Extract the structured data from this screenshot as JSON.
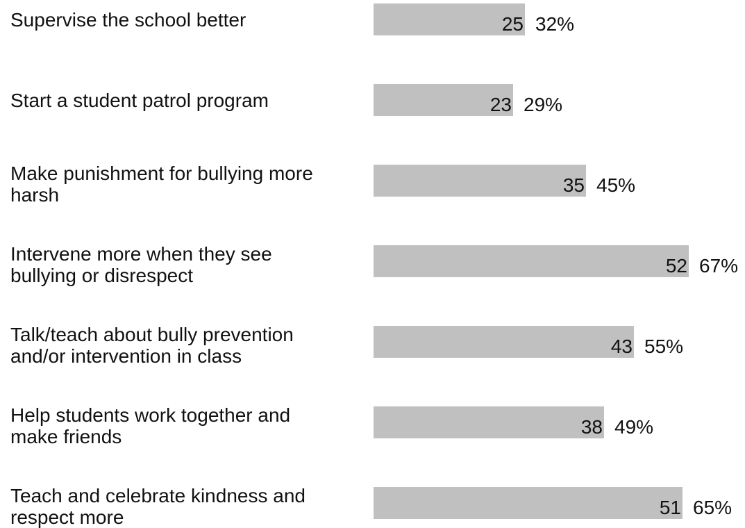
{
  "chart_data": {
    "type": "bar",
    "orientation": "horizontal",
    "title": "",
    "xlabel": "",
    "ylabel": "",
    "bar_color": "#c0c0c0",
    "grid": false,
    "legend": "none",
    "categories": [
      "Supervise the school better",
      "Start a student patrol program",
      "Make punishment for bullying more harsh",
      "Intervene more when they see bullying or disrespect",
      "Talk/teach about bully prevention and/or intervention in class",
      "Help students work together and make friends",
      "Teach and celebrate kindness and respect more"
    ],
    "category_lines": [
      [
        "Supervise the school better"
      ],
      [
        "Start a student patrol program"
      ],
      [
        "Make punishment for bullying more",
        "harsh"
      ],
      [
        "Intervene more when they see",
        "bullying or disrespect"
      ],
      [
        "Talk/teach about bully prevention",
        "and/or intervention in class"
      ],
      [
        "Help students work together and",
        "make friends"
      ],
      [
        "Teach and celebrate kindness and",
        "respect more"
      ]
    ],
    "values": [
      25,
      23,
      35,
      52,
      43,
      38,
      51
    ],
    "percent_labels": [
      "32%",
      "29%",
      "45%",
      "67%",
      "55%",
      "49%",
      "65%"
    ],
    "xlim": [
      0,
      52
    ]
  }
}
